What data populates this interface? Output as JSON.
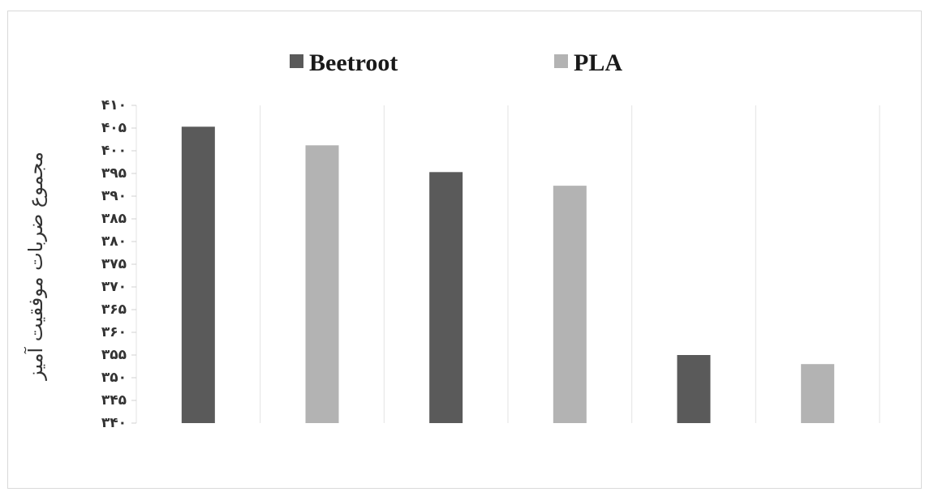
{
  "chart_data": {
    "type": "bar",
    "categories": [
      "",
      "",
      ""
    ],
    "series": [
      {
        "name": "Beetroot",
        "values": [
          405.3,
          395.3,
          355.0
        ],
        "color": "#5a5a5a"
      },
      {
        "name": "PLA",
        "values": [
          401.2,
          392.3,
          353.0
        ],
        "color": "#b3b3b3"
      }
    ],
    "ylabel": "مجموع ضربات موفقیت آمیز",
    "ylim": [
      340,
      410
    ],
    "y_ticks": [
      {
        "value": 340,
        "label": "۳۴۰"
      },
      {
        "value": 345,
        "label": "۳۴۵"
      },
      {
        "value": 350,
        "label": "۳۵۰"
      },
      {
        "value": 355,
        "label": "۳۵۵"
      },
      {
        "value": 360,
        "label": "۳۶۰"
      },
      {
        "value": 365,
        "label": "۳۶۵"
      },
      {
        "value": 370,
        "label": "۳۷۰"
      },
      {
        "value": 375,
        "label": "۳۷۵"
      },
      {
        "value": 380,
        "label": "۳۸۰"
      },
      {
        "value": 385,
        "label": "۳۸۵"
      },
      {
        "value": 390,
        "label": "۳۹۰"
      },
      {
        "value": 395,
        "label": "۳۹۵"
      },
      {
        "value": 400,
        "label": "۴۰۰"
      },
      {
        "value": 405,
        "label": "۴۰۵"
      },
      {
        "value": 410,
        "label": "۴۱۰"
      }
    ],
    "grid": "vertical",
    "legend_position": "top"
  }
}
